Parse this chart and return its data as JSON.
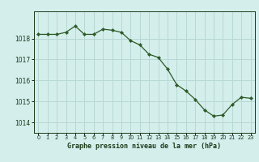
{
  "x": [
    0,
    1,
    2,
    3,
    4,
    5,
    6,
    7,
    8,
    9,
    10,
    11,
    12,
    13,
    14,
    15,
    16,
    17,
    18,
    19,
    20,
    21,
    22,
    23
  ],
  "y": [
    1018.2,
    1018.2,
    1018.2,
    1018.3,
    1018.6,
    1018.2,
    1018.2,
    1018.45,
    1018.4,
    1018.3,
    1017.9,
    1017.7,
    1017.25,
    1017.1,
    1016.55,
    1015.8,
    1015.5,
    1015.1,
    1014.6,
    1014.3,
    1014.35,
    1014.85,
    1015.2,
    1015.15
  ],
  "line_color": "#2d5a27",
  "marker_color": "#2d5a27",
  "bg_color": "#d4eeec",
  "grid_color": "#b8d8d4",
  "xlabel": "Graphe pression niveau de la mer (hPa)",
  "xlabel_color": "#1a3a18",
  "tick_color": "#1a3a18",
  "ylim": [
    1013.5,
    1019.3
  ],
  "yticks": [
    1014,
    1015,
    1016,
    1017,
    1018
  ],
  "xticks": [
    0,
    1,
    2,
    3,
    4,
    5,
    6,
    7,
    8,
    9,
    10,
    11,
    12,
    13,
    14,
    15,
    16,
    17,
    18,
    19,
    20,
    21,
    22,
    23
  ],
  "xtick_labels": [
    "0",
    "1",
    "2",
    "3",
    "4",
    "5",
    "6",
    "7",
    "8",
    "9",
    "10",
    "11",
    "12",
    "13",
    "14",
    "15",
    "16",
    "17",
    "18",
    "19",
    "20",
    "21",
    "22",
    "23"
  ]
}
